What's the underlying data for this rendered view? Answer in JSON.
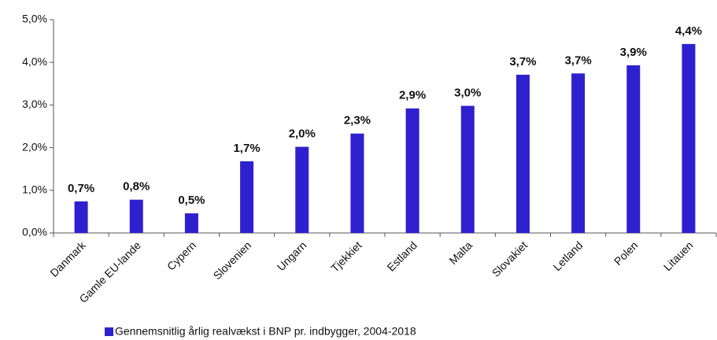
{
  "chart_data": {
    "type": "bar",
    "categories": [
      "Danmark",
      "Gamle EU-lande",
      "Cypern",
      "Slovenien",
      "Ungarn",
      "Tjekkiet",
      "Estland",
      "Malta",
      "Slovakiet",
      "Letland",
      "Polen",
      "Litauen"
    ],
    "series": [
      {
        "name": "Gennemsnitlig årlig realvækst i BNP pr. indbygger, 2004-2018",
        "color": "#2e20cf",
        "values": [
          0.74,
          0.78,
          0.46,
          1.68,
          2.02,
          2.33,
          2.92,
          2.98,
          3.71,
          3.74,
          3.93,
          4.43
        ],
        "value_labels": [
          "0,7%",
          "0,8%",
          "0,5%",
          "1,7%",
          "2,0%",
          "2,3%",
          "2,9%",
          "3,0%",
          "3,7%",
          "3,7%",
          "3,9%",
          "4,4%"
        ]
      }
    ],
    "ylim": [
      0,
      5
    ],
    "yticks": [
      {
        "value": 0,
        "label": "0,0%"
      },
      {
        "value": 1,
        "label": "1,0%"
      },
      {
        "value": 2,
        "label": "2,0%"
      },
      {
        "value": 3,
        "label": "3,0%"
      },
      {
        "value": 4,
        "label": "4,0%"
      },
      {
        "value": 5,
        "label": "5,0%"
      }
    ],
    "grid": false,
    "legend": "bottom"
  }
}
